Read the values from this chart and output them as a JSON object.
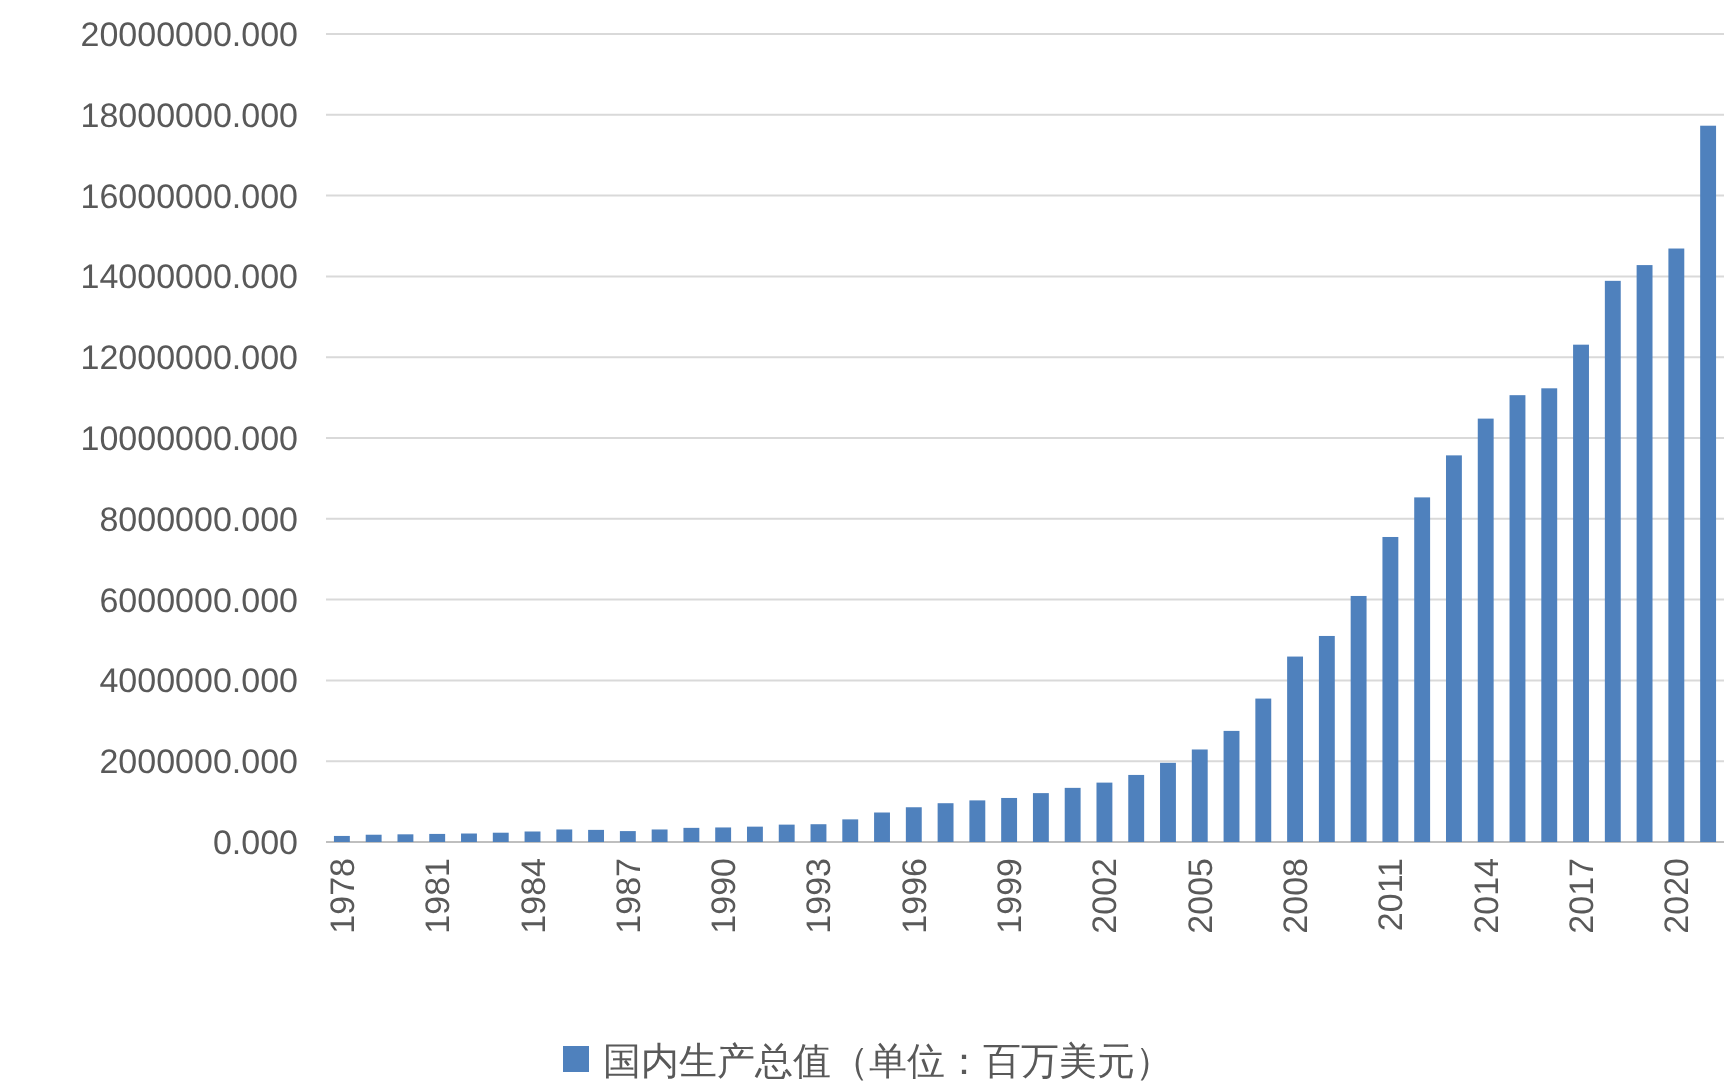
{
  "chart_data": {
    "type": "bar",
    "categories": [
      "1978",
      null,
      null,
      "1981",
      null,
      null,
      "1984",
      null,
      null,
      "1987",
      null,
      null,
      "1990",
      null,
      null,
      "1993",
      null,
      null,
      "1996",
      null,
      null,
      "1999",
      null,
      null,
      "2002",
      null,
      null,
      "2005",
      null,
      null,
      "2008",
      null,
      null,
      "2011",
      null,
      null,
      "2014",
      null,
      null,
      "2017",
      null,
      null,
      "2020",
      null
    ],
    "series": [
      {
        "name": "国内生产总值（单位：百万美元）",
        "color": "#4f81bd",
        "values": [
          150000,
          180000,
          190000,
          200000,
          210000,
          230000,
          260000,
          310000,
          300000,
          270000,
          310000,
          350000,
          360000,
          380000,
          430000,
          440000,
          560000,
          730000,
          860000,
          960000,
          1030000,
          1090000,
          1210000,
          1340000,
          1470000,
          1660000,
          1960000,
          2290000,
          2750000,
          3550000,
          4590000,
          5100000,
          6090000,
          7550000,
          8530000,
          9570000,
          10480000,
          11060000,
          11230000,
          12310000,
          13890000,
          14280000,
          14690000,
          17730000
        ]
      }
    ],
    "ylim": [
      0,
      20000000
    ],
    "yticks": [
      {
        "value": 0,
        "label": "0.000"
      },
      {
        "value": 2000000,
        "label": "2000000.000"
      },
      {
        "value": 4000000,
        "label": "4000000.000"
      },
      {
        "value": 6000000,
        "label": "6000000.000"
      },
      {
        "value": 8000000,
        "label": "8000000.000"
      },
      {
        "value": 10000000,
        "label": "10000000.000"
      },
      {
        "value": 12000000,
        "label": "12000000.000"
      },
      {
        "value": 14000000,
        "label": "14000000.000"
      },
      {
        "value": 16000000,
        "label": "16000000.000"
      },
      {
        "value": 18000000,
        "label": "18000000.000"
      },
      {
        "value": 20000000,
        "label": "20000000.000"
      }
    ],
    "grid": "y",
    "legend": "bottom"
  }
}
